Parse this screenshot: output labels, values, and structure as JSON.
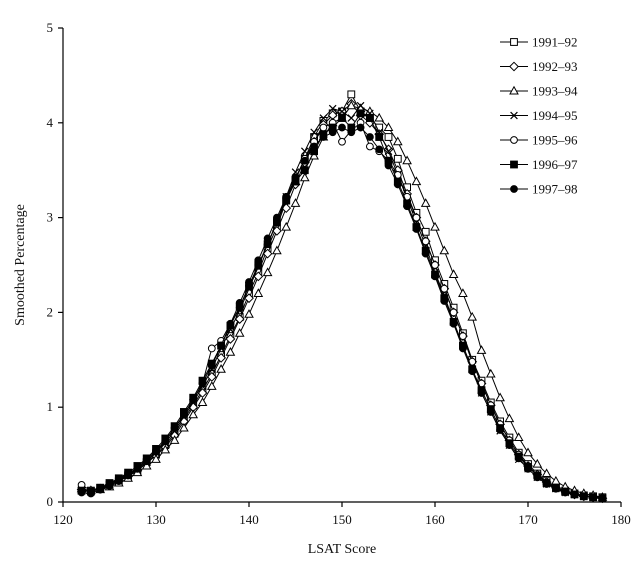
{
  "chart_data": {
    "type": "line",
    "title": "",
    "xlabel": "LSAT Score",
    "ylabel": "Smoothed Percentage",
    "xlim": [
      120,
      180
    ],
    "ylim": [
      0,
      5
    ],
    "xticks": [
      120,
      130,
      140,
      150,
      160,
      170,
      180
    ],
    "yticks": [
      0,
      1,
      2,
      3,
      4,
      5
    ],
    "grid": false,
    "legend_position": "top-right",
    "x": [
      122,
      123,
      124,
      125,
      126,
      127,
      128,
      129,
      130,
      131,
      132,
      133,
      134,
      135,
      136,
      137,
      138,
      139,
      140,
      141,
      142,
      143,
      144,
      145,
      146,
      147,
      148,
      149,
      150,
      151,
      152,
      153,
      154,
      155,
      156,
      157,
      158,
      159,
      160,
      161,
      162,
      163,
      164,
      165,
      166,
      167,
      168,
      169,
      170,
      171,
      172,
      173,
      174,
      175,
      176,
      177,
      178
    ],
    "series": [
      {
        "name": "1991–92",
        "marker": "square-open",
        "values": [
          0.12,
          0.12,
          0.15,
          0.18,
          0.22,
          0.28,
          0.33,
          0.42,
          0.5,
          0.6,
          0.72,
          0.88,
          1.02,
          1.18,
          1.35,
          1.55,
          1.75,
          1.95,
          2.2,
          2.42,
          2.68,
          2.9,
          3.18,
          3.4,
          3.62,
          3.85,
          4.02,
          4.1,
          4.12,
          4.3,
          4.12,
          4.05,
          3.95,
          3.85,
          3.62,
          3.32,
          3.05,
          2.85,
          2.55,
          2.3,
          2.05,
          1.78,
          1.5,
          1.28,
          1.05,
          0.85,
          0.68,
          0.52,
          0.4,
          0.3,
          0.22,
          0.16,
          0.12,
          0.09,
          0.07,
          0.06,
          0.05
        ]
      },
      {
        "name": "1992–93",
        "marker": "diamond-open",
        "values": [
          0.13,
          0.12,
          0.14,
          0.18,
          0.22,
          0.27,
          0.33,
          0.41,
          0.49,
          0.58,
          0.7,
          0.85,
          1.0,
          1.15,
          1.32,
          1.52,
          1.72,
          1.93,
          2.15,
          2.38,
          2.62,
          2.86,
          3.1,
          3.35,
          3.58,
          3.8,
          3.98,
          4.08,
          4.12,
          4.2,
          4.08,
          4.0,
          3.88,
          3.72,
          3.5,
          3.25,
          3.0,
          2.75,
          2.5,
          2.25,
          2.0,
          1.75,
          1.48,
          1.25,
          1.02,
          0.82,
          0.65,
          0.5,
          0.38,
          0.29,
          0.21,
          0.15,
          0.11,
          0.08,
          0.06,
          0.05,
          0.04
        ]
      },
      {
        "name": "1993–94",
        "marker": "triangle-open",
        "values": [
          0.14,
          0.12,
          0.13,
          0.16,
          0.2,
          0.25,
          0.31,
          0.38,
          0.45,
          0.55,
          0.65,
          0.78,
          0.92,
          1.05,
          1.22,
          1.4,
          1.58,
          1.78,
          1.98,
          2.2,
          2.42,
          2.65,
          2.9,
          3.15,
          3.42,
          3.65,
          3.85,
          4.0,
          4.05,
          4.18,
          4.15,
          4.12,
          4.05,
          3.95,
          3.8,
          3.6,
          3.38,
          3.15,
          2.9,
          2.65,
          2.4,
          2.2,
          1.95,
          1.6,
          1.35,
          1.1,
          0.88,
          0.68,
          0.52,
          0.4,
          0.3,
          0.22,
          0.16,
          0.12,
          0.09,
          0.07,
          0.05
        ]
      },
      {
        "name": "1994–95",
        "marker": "x",
        "values": [
          0.12,
          0.11,
          0.14,
          0.18,
          0.23,
          0.29,
          0.35,
          0.43,
          0.52,
          0.62,
          0.75,
          0.9,
          1.05,
          1.22,
          1.4,
          1.62,
          1.82,
          2.02,
          2.25,
          2.48,
          2.72,
          2.96,
          3.22,
          3.48,
          3.7,
          3.9,
          4.05,
          4.15,
          4.12,
          4.05,
          4.18,
          4.1,
          3.9,
          3.7,
          3.45,
          3.2,
          2.95,
          2.7,
          2.42,
          2.18,
          1.9,
          1.65,
          1.4,
          1.15,
          0.95,
          0.75,
          0.6,
          0.45,
          0.35,
          0.26,
          0.19,
          0.14,
          0.1,
          0.08,
          0.06,
          0.05,
          0.04
        ]
      },
      {
        "name": "1995–96",
        "marker": "circle-open",
        "values": [
          0.18,
          0.12,
          0.15,
          0.19,
          0.24,
          0.3,
          0.36,
          0.45,
          0.54,
          0.65,
          0.78,
          0.92,
          1.08,
          1.25,
          1.62,
          1.7,
          1.88,
          2.05,
          2.28,
          2.5,
          2.72,
          2.95,
          3.2,
          3.42,
          3.62,
          3.8,
          3.95,
          4.0,
          3.8,
          3.92,
          4.0,
          3.75,
          3.7,
          3.6,
          3.45,
          3.22,
          3.0,
          2.75,
          2.5,
          2.25,
          2.0,
          1.75,
          1.48,
          1.25,
          1.02,
          0.82,
          0.65,
          0.5,
          0.38,
          0.28,
          0.2,
          0.15,
          0.11,
          0.08,
          0.06,
          0.05,
          0.04
        ]
      },
      {
        "name": "1996–97",
        "marker": "square-filled",
        "values": [
          0.12,
          0.11,
          0.15,
          0.2,
          0.25,
          0.31,
          0.38,
          0.46,
          0.56,
          0.67,
          0.8,
          0.95,
          1.1,
          1.28,
          1.46,
          1.65,
          1.86,
          2.06,
          2.28,
          2.5,
          2.72,
          2.95,
          3.18,
          3.38,
          3.5,
          3.7,
          3.88,
          3.95,
          4.05,
          3.95,
          4.1,
          4.05,
          3.85,
          3.6,
          3.38,
          3.15,
          2.9,
          2.65,
          2.4,
          2.15,
          1.9,
          1.65,
          1.4,
          1.18,
          0.98,
          0.78,
          0.62,
          0.48,
          0.37,
          0.28,
          0.2,
          0.15,
          0.11,
          0.08,
          0.06,
          0.05,
          0.04
        ]
      },
      {
        "name": "1997–98",
        "marker": "circle-filled",
        "values": [
          0.1,
          0.09,
          0.13,
          0.17,
          0.22,
          0.28,
          0.35,
          0.43,
          0.53,
          0.64,
          0.78,
          0.92,
          1.08,
          1.25,
          1.44,
          1.65,
          1.88,
          2.1,
          2.32,
          2.55,
          2.78,
          3.0,
          3.22,
          3.42,
          3.6,
          3.75,
          3.85,
          3.9,
          3.95,
          3.9,
          3.95,
          3.85,
          3.72,
          3.55,
          3.35,
          3.12,
          2.88,
          2.62,
          2.38,
          2.12,
          1.88,
          1.62,
          1.38,
          1.15,
          0.95,
          0.76,
          0.6,
          0.46,
          0.35,
          0.26,
          0.19,
          0.14,
          0.1,
          0.08,
          0.06,
          0.05,
          0.04
        ]
      }
    ]
  }
}
